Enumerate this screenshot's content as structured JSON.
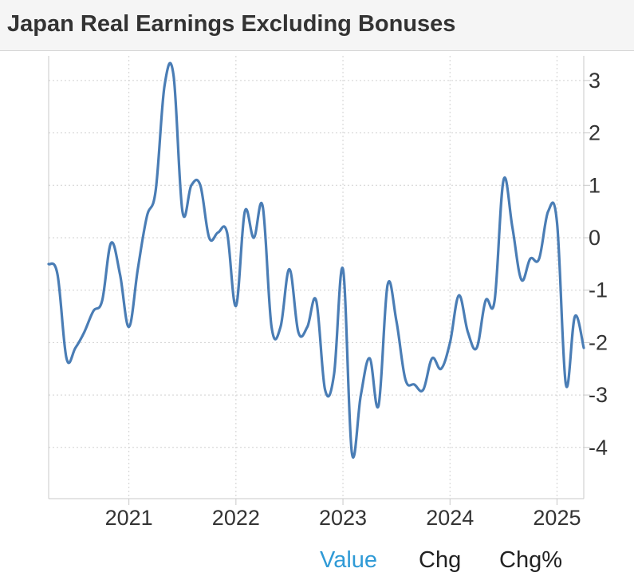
{
  "title": "Japan Real Earnings Excluding Bonuses",
  "tabs": [
    {
      "label": "Value",
      "active": true
    },
    {
      "label": "Chg",
      "active": false
    },
    {
      "label": "Chg%",
      "active": false
    }
  ],
  "colors": {
    "line": "#4a7db5",
    "active_tab": "#2f9ad6",
    "grid": "#d0d0d0"
  },
  "chart_data": {
    "type": "line",
    "title": "Japan Real Earnings Excluding Bonuses",
    "xlabel": "",
    "ylabel": "",
    "y_ticks": [
      3,
      2,
      1,
      0,
      -1,
      -2,
      -3,
      -4
    ],
    "y_tick_labels": [
      "3",
      "2",
      "1",
      "0",
      "-1",
      "-2",
      "-3",
      "-4"
    ],
    "x_ticks": [
      2021,
      2022,
      2023,
      2024,
      2025
    ],
    "x_tick_labels": [
      "2021",
      "2022",
      "2023",
      "2024",
      "2025"
    ],
    "xlim": [
      2020.25,
      2025.25
    ],
    "ylim": [
      -5.0,
      3.5
    ],
    "grid": true,
    "y_axis_position": "right",
    "series": [
      {
        "values": [
          [
            2020.25,
            -0.5
          ],
          [
            2020.333,
            -0.7
          ],
          [
            2020.417,
            -2.3
          ],
          [
            2020.5,
            -2.1
          ],
          [
            2020.583,
            -1.8
          ],
          [
            2020.667,
            -1.4
          ],
          [
            2020.75,
            -1.2
          ],
          [
            2020.833,
            -0.1
          ],
          [
            2020.917,
            -0.7
          ],
          [
            2021.0,
            -1.7
          ],
          [
            2021.083,
            -0.6
          ],
          [
            2021.167,
            0.4
          ],
          [
            2021.25,
            0.9
          ],
          [
            2021.333,
            2.9
          ],
          [
            2021.417,
            3.1
          ],
          [
            2021.5,
            0.5
          ],
          [
            2021.583,
            1.0
          ],
          [
            2021.667,
            1.0
          ],
          [
            2021.75,
            0.0
          ],
          [
            2021.833,
            0.1
          ],
          [
            2021.917,
            0.1
          ],
          [
            2022.0,
            -1.3
          ],
          [
            2022.083,
            0.5
          ],
          [
            2022.167,
            0.0
          ],
          [
            2022.25,
            0.6
          ],
          [
            2022.333,
            -1.7
          ],
          [
            2022.417,
            -1.7
          ],
          [
            2022.5,
            -0.6
          ],
          [
            2022.583,
            -1.8
          ],
          [
            2022.667,
            -1.7
          ],
          [
            2022.75,
            -1.2
          ],
          [
            2022.833,
            -2.9
          ],
          [
            2022.917,
            -2.6
          ],
          [
            2023.0,
            -0.6
          ],
          [
            2023.083,
            -4.1
          ],
          [
            2023.167,
            -3.0
          ],
          [
            2023.25,
            -2.3
          ],
          [
            2023.333,
            -3.2
          ],
          [
            2023.417,
            -0.9
          ],
          [
            2023.5,
            -1.6
          ],
          [
            2023.583,
            -2.7
          ],
          [
            2023.667,
            -2.8
          ],
          [
            2023.75,
            -2.9
          ],
          [
            2023.833,
            -2.3
          ],
          [
            2023.917,
            -2.5
          ],
          [
            2024.0,
            -2.0
          ],
          [
            2024.083,
            -1.1
          ],
          [
            2024.167,
            -1.8
          ],
          [
            2024.25,
            -2.1
          ],
          [
            2024.333,
            -1.2
          ],
          [
            2024.417,
            -1.2
          ],
          [
            2024.5,
            1.1
          ],
          [
            2024.583,
            0.2
          ],
          [
            2024.667,
            -0.8
          ],
          [
            2024.75,
            -0.4
          ],
          [
            2024.833,
            -0.4
          ],
          [
            2024.917,
            0.5
          ],
          [
            2025.0,
            0.3
          ],
          [
            2025.083,
            -2.8
          ],
          [
            2025.167,
            -1.5
          ],
          [
            2025.25,
            -2.1
          ]
        ]
      }
    ]
  }
}
